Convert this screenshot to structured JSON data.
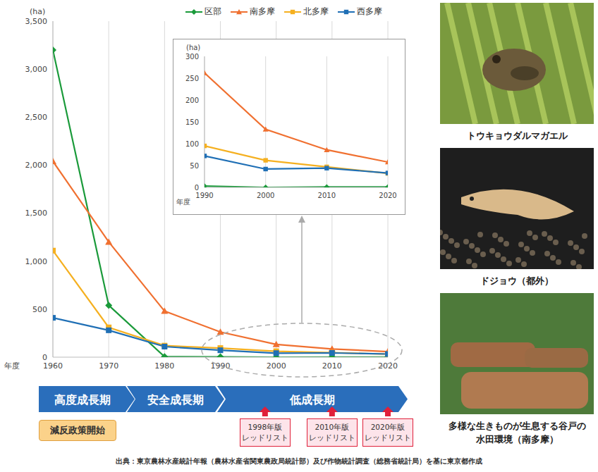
{
  "chart_data": [
    {
      "type": "line",
      "y_label": "(ha)",
      "x_label": "年度",
      "x": [
        1960,
        1970,
        1980,
        1990,
        2000,
        2010,
        2020
      ],
      "xlim": [
        1960,
        2020
      ],
      "xticks": [
        1960,
        1970,
        1980,
        1990,
        2000,
        2010,
        2020
      ],
      "ylim": [
        0,
        3500
      ],
      "yticks": [
        0,
        500,
        {
          "value": 1000,
          "label": "1,000"
        },
        {
          "value": 1500,
          "label": "1,500"
        },
        {
          "value": 2000,
          "label": "2,000"
        },
        {
          "value": 2500,
          "label": "2,500"
        },
        {
          "value": 3000,
          "label": "3,000"
        },
        {
          "value": 3500,
          "label": "3,500"
        }
      ],
      "grid": "x",
      "legend": "top",
      "series": [
        {
          "name": "区部",
          "color": "#1a9a3a",
          "marker": "diamond",
          "values": [
            3200,
            540,
            5,
            3,
            0,
            1,
            1
          ]
        },
        {
          "name": "南多摩",
          "color": "#f07030",
          "marker": "triangle",
          "values": [
            2040,
            1200,
            480,
            262,
            133,
            86,
            58
          ]
        },
        {
          "name": "北多摩",
          "color": "#f5b020",
          "marker": "square",
          "values": [
            1110,
            310,
            120,
            95,
            62,
            47,
            32
          ]
        },
        {
          "name": "西多摩",
          "color": "#1f6fb5",
          "marker": "square",
          "values": [
            410,
            280,
            110,
            72,
            42,
            44,
            33
          ]
        }
      ]
    },
    {
      "type": "line",
      "y_label": "(ha)",
      "x_label": "年度",
      "x": [
        1990,
        2000,
        2010,
        2020
      ],
      "xlim": [
        1990,
        2020
      ],
      "xticks": [
        1990,
        2000,
        2010,
        2020
      ],
      "ylim": [
        0,
        300
      ],
      "yticks": [
        0,
        50,
        100,
        150,
        200,
        250,
        300
      ],
      "grid": "x",
      "series": [
        {
          "name": "区部",
          "color": "#1a9a3a",
          "marker": "diamond",
          "values": [
            3,
            0,
            1,
            1
          ]
        },
        {
          "name": "南多摩",
          "color": "#f07030",
          "marker": "triangle",
          "values": [
            262,
            133,
            86,
            58
          ]
        },
        {
          "name": "北多摩",
          "color": "#f5b020",
          "marker": "square",
          "values": [
            95,
            62,
            47,
            32
          ]
        },
        {
          "name": "西多摩",
          "color": "#1f6fb5",
          "marker": "square",
          "values": [
            72,
            42,
            44,
            33
          ]
        }
      ]
    }
  ],
  "timeline": {
    "phases": [
      "高度成長期",
      "安全成長期",
      "低成長期"
    ],
    "policy": "減反政策開始",
    "red_lists": [
      {
        "edition": "1998年版",
        "label": "レッドリスト"
      },
      {
        "edition": "2010年版",
        "label": "レッドリスト"
      },
      {
        "edition": "2020年版",
        "label": "レッドリスト"
      }
    ]
  },
  "photos": [
    {
      "caption": "トウキョウダルマガエル"
    },
    {
      "caption": "ドジョウ（都外）"
    },
    {
      "caption": "多様な生きものが生息する谷戸の水田環境（南多摩）"
    }
  ],
  "source": "出典：東京農林水産統計年報（農林水産省関東農政局統計部）及び作物統計調査（総務省統計局）を基に東京都作成"
}
